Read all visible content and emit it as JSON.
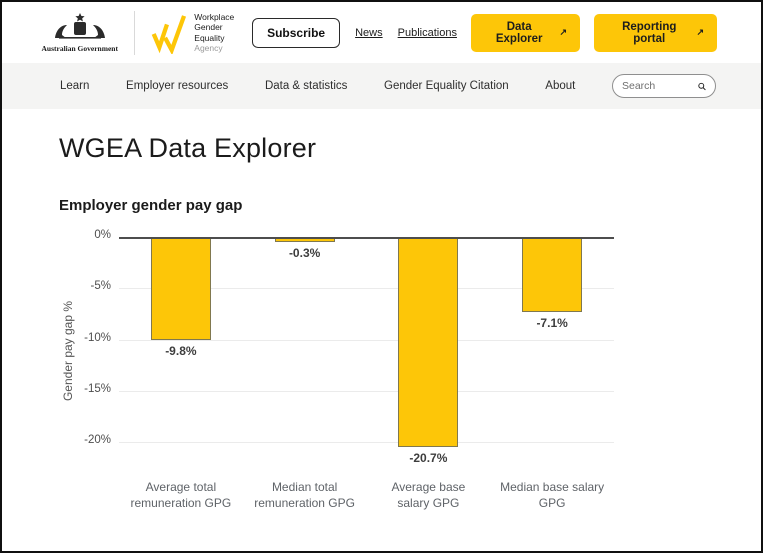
{
  "header": {
    "gov_logo_text": "Australian Government",
    "wgea_logo_line1": "Workplace",
    "wgea_logo_line2": "Gender Equality",
    "wgea_logo_line3": "Agency",
    "subscribe_label": "Subscribe",
    "links": {
      "news": "News",
      "publications": "Publications"
    },
    "buttons": {
      "data_explorer": "Data Explorer",
      "reporting_portal": "Reporting portal"
    },
    "external_arrow": "↗"
  },
  "nav": {
    "items": [
      "Learn",
      "Employer resources",
      "Data & statistics",
      "Gender Equality Citation",
      "About"
    ],
    "search_placeholder": "Search"
  },
  "page": {
    "title": "WGEA Data Explorer"
  },
  "chart_data": {
    "type": "bar",
    "title": "Employer gender pay gap",
    "ylabel": "Gender pay gap %",
    "categories": [
      "Average total remuneration GPG",
      "Median total remuneration GPG",
      "Average base salary GPG",
      "Median base salary GPG"
    ],
    "values": [
      -9.8,
      -0.3,
      -20.7,
      -7.1
    ],
    "value_labels": [
      "-9.8%",
      "-0.3%",
      "-20.7%",
      "-7.1%"
    ],
    "yticks": [
      0,
      -5,
      -10,
      -15,
      -20
    ],
    "ytick_labels": [
      "0%",
      "-5%",
      "-10%",
      "-15%",
      "-20%"
    ],
    "ylim": [
      -22,
      0
    ],
    "grid": true,
    "legend": false,
    "bar_color": "#FDC608",
    "bar_border_color": "#80784F",
    "zero_line_color": "#4d4d4d",
    "gridline_color": "#ebebeb"
  },
  "colors": {
    "brand_yellow": "#FDC608",
    "nav_bg": "#f4f4f3"
  }
}
